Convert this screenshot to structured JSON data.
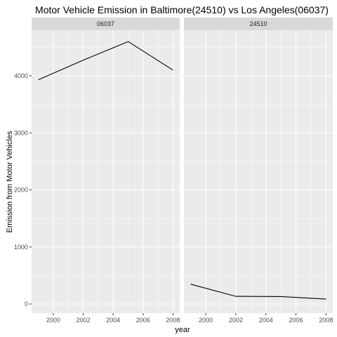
{
  "chart_data": {
    "type": "line",
    "title": "Motor Vehicle Emission in Baltimore(24510) vs Los Angeles(06037)",
    "xlabel": "year",
    "ylabel": "Emission from Motor Vehicles",
    "x_ticks": [
      2000,
      2002,
      2004,
      2006,
      2008
    ],
    "y_ticks": [
      0,
      1000,
      2000,
      3000,
      4000
    ],
    "xlim": [
      1998.55,
      2008.45
    ],
    "ylim": [
      -160,
      4800
    ],
    "grid": true,
    "legend": "none",
    "facets": [
      {
        "label": "06037",
        "x": [
          1999,
          2002,
          2005,
          2008
        ],
        "y": [
          3931,
          4274,
          4601,
          4101
        ]
      },
      {
        "label": "24510",
        "x": [
          1999,
          2002,
          2005,
          2008
        ],
        "y": [
          347,
          134,
          130,
          88
        ]
      }
    ],
    "colors": {
      "panel": "#ebebeb",
      "strip": "#d9d9d9",
      "grid": "#ffffff",
      "line": "#000000"
    }
  }
}
